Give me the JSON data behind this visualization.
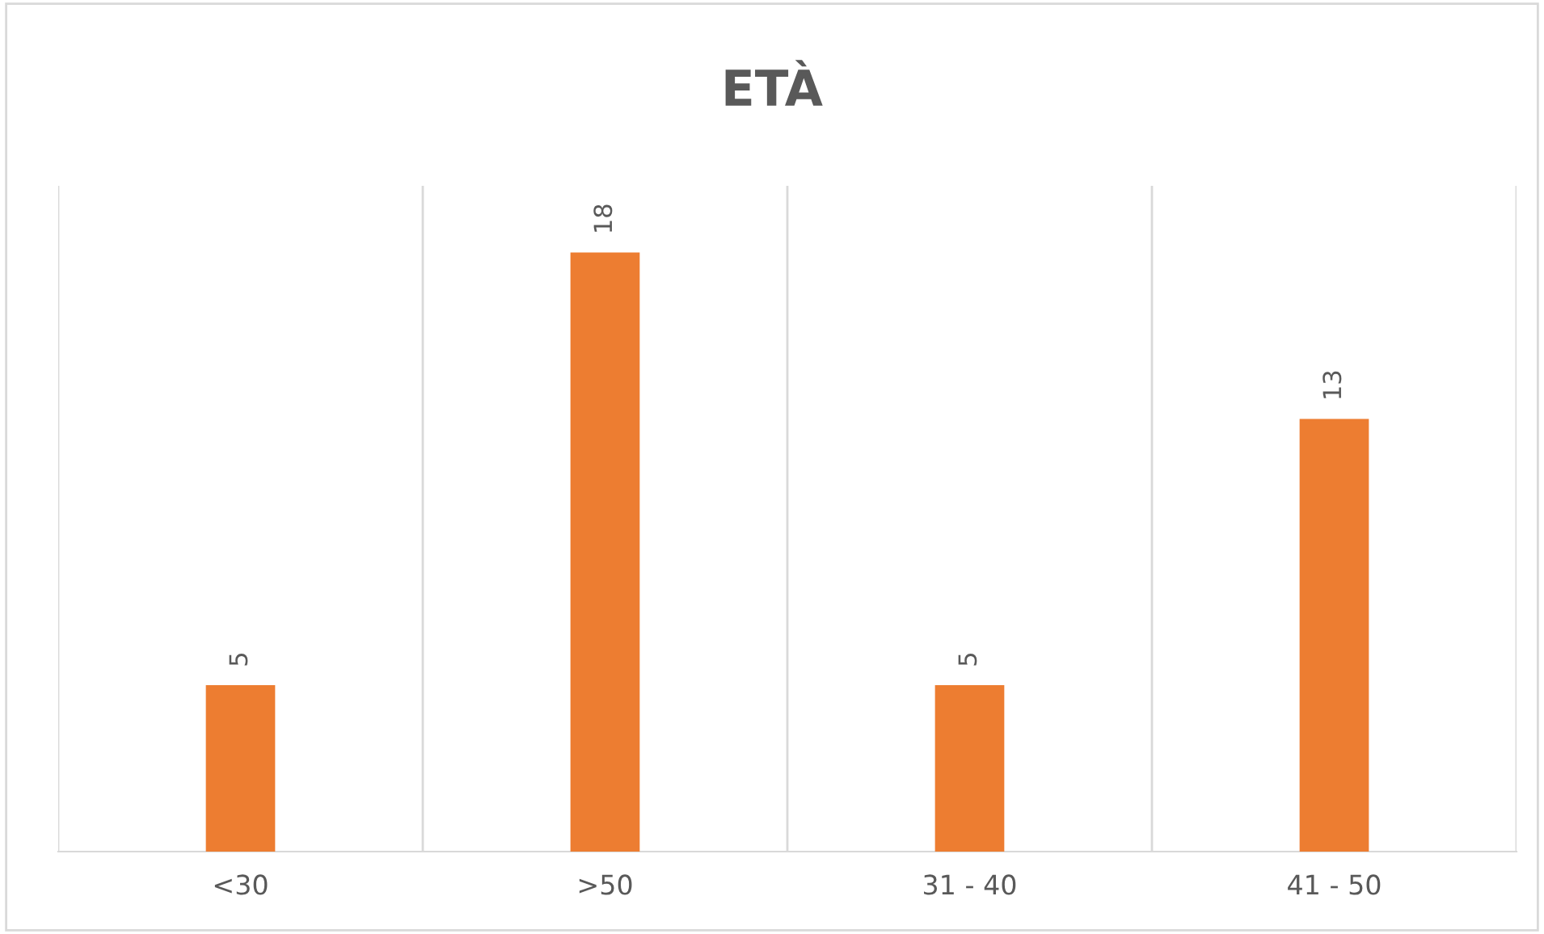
{
  "chart_data": {
    "type": "bar",
    "title": "ETÀ",
    "categories": [
      "<30",
      ">50",
      "31 - 40",
      "41 - 50"
    ],
    "values": [
      5,
      18,
      5,
      13
    ],
    "color": "#ed7d31",
    "ylim": [
      0,
      20
    ],
    "data_labels": true,
    "grid": "x",
    "tick_labels": "x"
  }
}
